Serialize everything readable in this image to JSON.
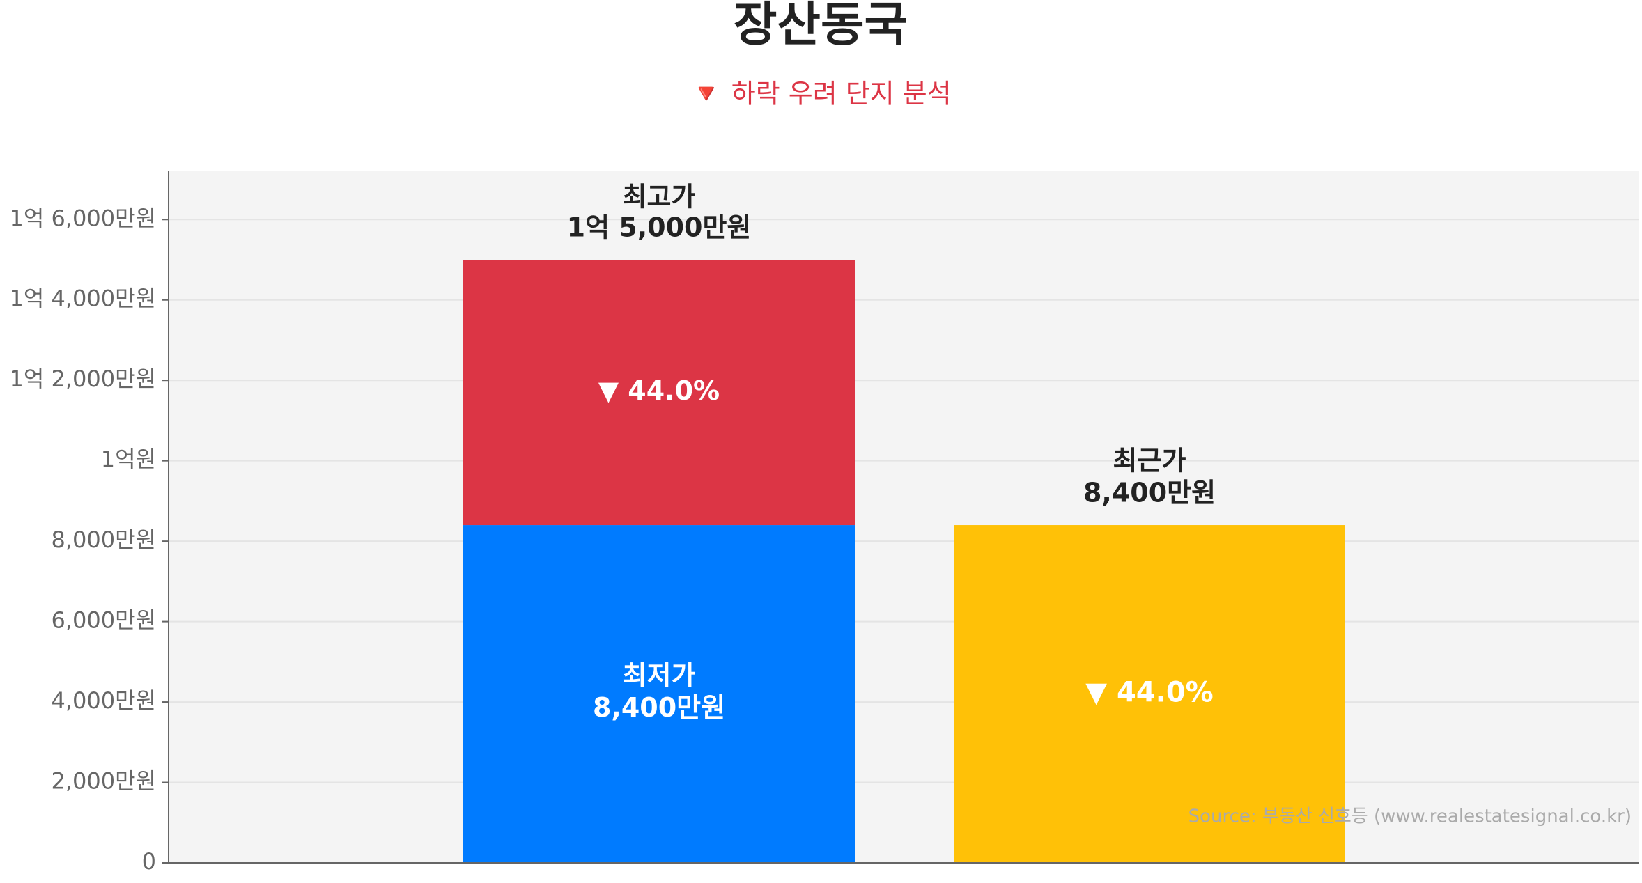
{
  "chart_data": {
    "type": "bar",
    "stacked": true,
    "title": "장산동국",
    "subtitle": "🔻 하락 우려 단지 분석",
    "source": "Source: 부동산 신호등 (www.realestatesignal.co.kr)",
    "series": [
      {
        "name": "최저가",
        "color": "#007bff",
        "values": [
          8400,
          null
        ],
        "value_labels": [
          "8,400만원",
          null
        ]
      },
      {
        "color": "#dc3545",
        "values": [
          6600,
          null
        ]
      },
      {
        "name": "최근가",
        "color": "#ffc107",
        "values": [
          null,
          8400
        ],
        "value_labels": [
          null,
          "8,400만원"
        ]
      }
    ],
    "peak": {
      "name": "최고가",
      "value": 15000,
      "label": "1억 5,000만원"
    },
    "drop_labels": [
      "▼ 44.0%",
      "▼ 44.0%"
    ],
    "ylim": [
      0,
      17200
    ],
    "yticks": [
      0,
      {
        "value": 2000,
        "label": "2,000만원"
      },
      {
        "value": 4000,
        "label": "4,000만원"
      },
      {
        "value": 6000,
        "label": "6,000만원"
      },
      {
        "value": 8000,
        "label": "8,000만원"
      },
      {
        "value": 10000,
        "label": "1억원"
      },
      {
        "value": 12000,
        "label": "1억 2,000만원"
      },
      {
        "value": 14000,
        "label": "1억 4,000만원"
      },
      {
        "value": 16000,
        "label": "1억 6,000만원"
      }
    ],
    "grid": true
  }
}
